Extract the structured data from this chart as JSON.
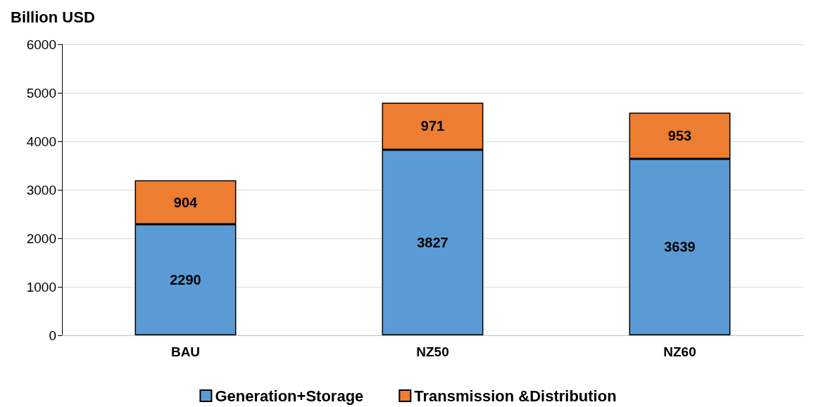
{
  "chart_data": {
    "type": "bar",
    "ylabel": "Billion USD",
    "categories": [
      "BAU",
      "NZ50",
      "NZ60"
    ],
    "series": [
      {
        "name": "Generation+Storage",
        "color": "#5b9bd5",
        "values": [
          2290,
          3827,
          3639
        ]
      },
      {
        "name": "Transmission &Distribution",
        "color": "#ed7d31",
        "values": [
          904,
          971,
          953
        ]
      }
    ],
    "stacked": true,
    "data_labels": true,
    "ylim": [
      0,
      6000
    ],
    "yticks": [
      0,
      1000,
      2000,
      3000,
      4000,
      5000,
      6000
    ],
    "grid": "y",
    "legend": "bottom"
  }
}
